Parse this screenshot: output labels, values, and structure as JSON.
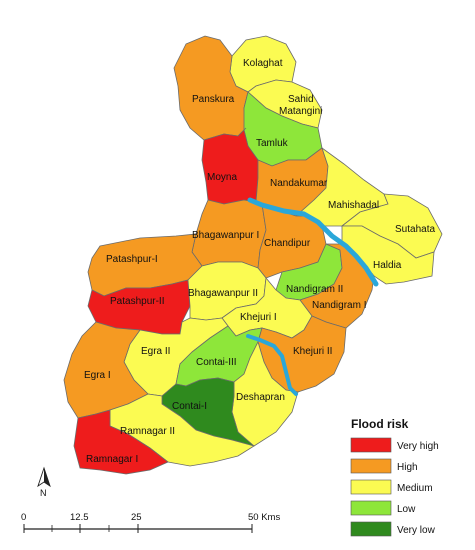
{
  "colors": {
    "very_high": "#ee1c1c",
    "high": "#f59a22",
    "medium": "#fbfb52",
    "low": "#8ee63a",
    "very_low": "#2f8a1e",
    "river": "#2aa7d9"
  },
  "regions": [
    {
      "name": "Kolaghat",
      "class": "medium"
    },
    {
      "name": "Panskura",
      "class": "high"
    },
    {
      "name": "Sahid Matangini",
      "class": "medium"
    },
    {
      "name": "Tamluk",
      "class": "low"
    },
    {
      "name": "Moyna",
      "class": "very_high"
    },
    {
      "name": "Nandakumar",
      "class": "high"
    },
    {
      "name": "Mahishadal",
      "class": "medium"
    },
    {
      "name": "Sutahata",
      "class": "medium"
    },
    {
      "name": "Haldia",
      "class": "medium"
    },
    {
      "name": "Bhagawanpur I",
      "class": "high"
    },
    {
      "name": "Chandipur",
      "class": "high"
    },
    {
      "name": "Patashpur-I",
      "class": "high"
    },
    {
      "name": "Patashpur-II",
      "class": "very_high"
    },
    {
      "name": "Bhagawanpur II",
      "class": "medium"
    },
    {
      "name": "Nandigram II",
      "class": "low"
    },
    {
      "name": "Nandigram I",
      "class": "high"
    },
    {
      "name": "Khejuri I",
      "class": "medium"
    },
    {
      "name": "Egra II",
      "class": "medium"
    },
    {
      "name": "Contai-III",
      "class": "low"
    },
    {
      "name": "Khejuri II",
      "class": "high"
    },
    {
      "name": "Egra I",
      "class": "high"
    },
    {
      "name": "Deshapran",
      "class": "medium"
    },
    {
      "name": "Contai-I",
      "class": "very_low"
    },
    {
      "name": "Ramnagar II",
      "class": "medium"
    },
    {
      "name": "Ramnagar I",
      "class": "very_high"
    }
  ],
  "legend": {
    "title": "Flood risk",
    "items": [
      {
        "label": "Very high",
        "class": "very_high"
      },
      {
        "label": "High",
        "class": "high"
      },
      {
        "label": "Medium",
        "class": "medium"
      },
      {
        "label": "Low",
        "class": "low"
      },
      {
        "label": "Very low",
        "class": "very_low"
      }
    ]
  },
  "north_arrow": {
    "label": "N"
  },
  "scale_bar": {
    "ticks": [
      "0",
      "12.5",
      "25",
      "50 Kms"
    ]
  }
}
